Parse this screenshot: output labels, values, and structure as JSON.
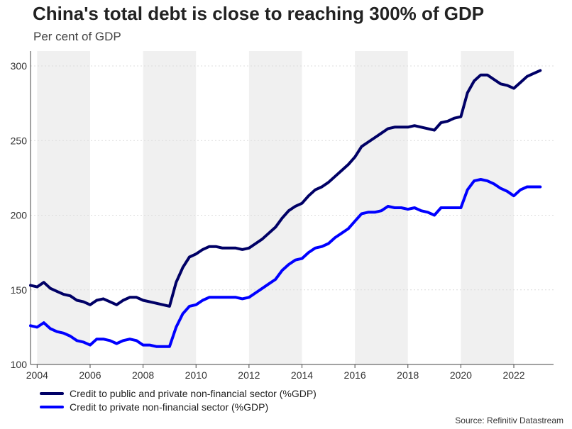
{
  "title": "China's total debt is close to reaching 300% of GDP",
  "subtitle": "Per cent of GDP",
  "source": "Source: Refinitiv Datastream",
  "colors": {
    "series1": "#000066",
    "series2": "#0000ff",
    "band": "#f0f0f0",
    "grid": "#dcdcdc"
  },
  "chart_data": {
    "type": "line",
    "title": "China's total debt is close to reaching 300% of GDP",
    "subtitle": "Per cent of GDP",
    "xlabel": "",
    "ylabel": "Per cent of GDP",
    "xlim": [
      2003.75,
      2023.5
    ],
    "ylim": [
      100,
      310
    ],
    "yticks": [
      100,
      150,
      200,
      250,
      300
    ],
    "xticks": [
      2004,
      2006,
      2008,
      2010,
      2012,
      2014,
      2016,
      2018,
      2020,
      2022
    ],
    "shaded_bands": [
      [
        2004,
        2006
      ],
      [
        2008,
        2010
      ],
      [
        2012,
        2014
      ],
      [
        2016,
        2018
      ],
      [
        2020,
        2022
      ]
    ],
    "legend_position": "bottom-left",
    "series": [
      {
        "name": "Credit to public and private non-financial sector (%GDP)",
        "color": "#000066",
        "x": [
          2003.75,
          2004.0,
          2004.25,
          2004.5,
          2004.75,
          2005.0,
          2005.25,
          2005.5,
          2005.75,
          2006.0,
          2006.25,
          2006.5,
          2006.75,
          2007.0,
          2007.25,
          2007.5,
          2007.75,
          2008.0,
          2008.25,
          2008.5,
          2008.75,
          2009.0,
          2009.25,
          2009.5,
          2009.75,
          2010.0,
          2010.25,
          2010.5,
          2010.75,
          2011.0,
          2011.25,
          2011.5,
          2011.75,
          2012.0,
          2012.25,
          2012.5,
          2012.75,
          2013.0,
          2013.25,
          2013.5,
          2013.75,
          2014.0,
          2014.25,
          2014.5,
          2014.75,
          2015.0,
          2015.25,
          2015.5,
          2015.75,
          2016.0,
          2016.25,
          2016.5,
          2016.75,
          2017.0,
          2017.25,
          2017.5,
          2017.75,
          2018.0,
          2018.25,
          2018.5,
          2018.75,
          2019.0,
          2019.25,
          2019.5,
          2019.75,
          2020.0,
          2020.25,
          2020.5,
          2020.75,
          2021.0,
          2021.25,
          2021.5,
          2021.75,
          2022.0,
          2022.25,
          2022.5,
          2022.75,
          2023.0
        ],
        "values": [
          153,
          152,
          155,
          151,
          149,
          147,
          146,
          143,
          142,
          140,
          143,
          144,
          142,
          140,
          143,
          145,
          145,
          143,
          142,
          141,
          140,
          139,
          155,
          165,
          172,
          174,
          177,
          179,
          179,
          178,
          178,
          178,
          177,
          178,
          181,
          184,
          188,
          192,
          198,
          203,
          206,
          208,
          213,
          217,
          219,
          222,
          226,
          230,
          234,
          239,
          246,
          249,
          252,
          255,
          258,
          259,
          259,
          259,
          260,
          259,
          258,
          257,
          262,
          263,
          265,
          266,
          282,
          290,
          294,
          294,
          291,
          288,
          287,
          285,
          289,
          293,
          295,
          297
        ]
      },
      {
        "name": "Credit to private non-financial sector (%GDP)",
        "color": "#0000ff",
        "x": [
          2003.75,
          2004.0,
          2004.25,
          2004.5,
          2004.75,
          2005.0,
          2005.25,
          2005.5,
          2005.75,
          2006.0,
          2006.25,
          2006.5,
          2006.75,
          2007.0,
          2007.25,
          2007.5,
          2007.75,
          2008.0,
          2008.25,
          2008.5,
          2008.75,
          2009.0,
          2009.25,
          2009.5,
          2009.75,
          2010.0,
          2010.25,
          2010.5,
          2010.75,
          2011.0,
          2011.25,
          2011.5,
          2011.75,
          2012.0,
          2012.25,
          2012.5,
          2012.75,
          2013.0,
          2013.25,
          2013.5,
          2013.75,
          2014.0,
          2014.25,
          2014.5,
          2014.75,
          2015.0,
          2015.25,
          2015.5,
          2015.75,
          2016.0,
          2016.25,
          2016.5,
          2016.75,
          2017.0,
          2017.25,
          2017.5,
          2017.75,
          2018.0,
          2018.25,
          2018.5,
          2018.75,
          2019.0,
          2019.25,
          2019.5,
          2019.75,
          2020.0,
          2020.25,
          2020.5,
          2020.75,
          2021.0,
          2021.25,
          2021.5,
          2021.75,
          2022.0,
          2022.25,
          2022.5,
          2022.75,
          2023.0
        ],
        "values": [
          126,
          125,
          128,
          124,
          122,
          121,
          119,
          116,
          115,
          113,
          117,
          117,
          116,
          114,
          116,
          117,
          116,
          113,
          113,
          112,
          112,
          112,
          125,
          134,
          139,
          140,
          143,
          145,
          145,
          145,
          145,
          145,
          144,
          145,
          148,
          151,
          154,
          157,
          163,
          167,
          170,
          171,
          175,
          178,
          179,
          181,
          185,
          188,
          191,
          196,
          201,
          202,
          202,
          203,
          206,
          205,
          205,
          204,
          205,
          203,
          202,
          200,
          205,
          205,
          205,
          205,
          217,
          223,
          224,
          223,
          221,
          218,
          216,
          213,
          217,
          219,
          219,
          219
        ]
      }
    ]
  }
}
